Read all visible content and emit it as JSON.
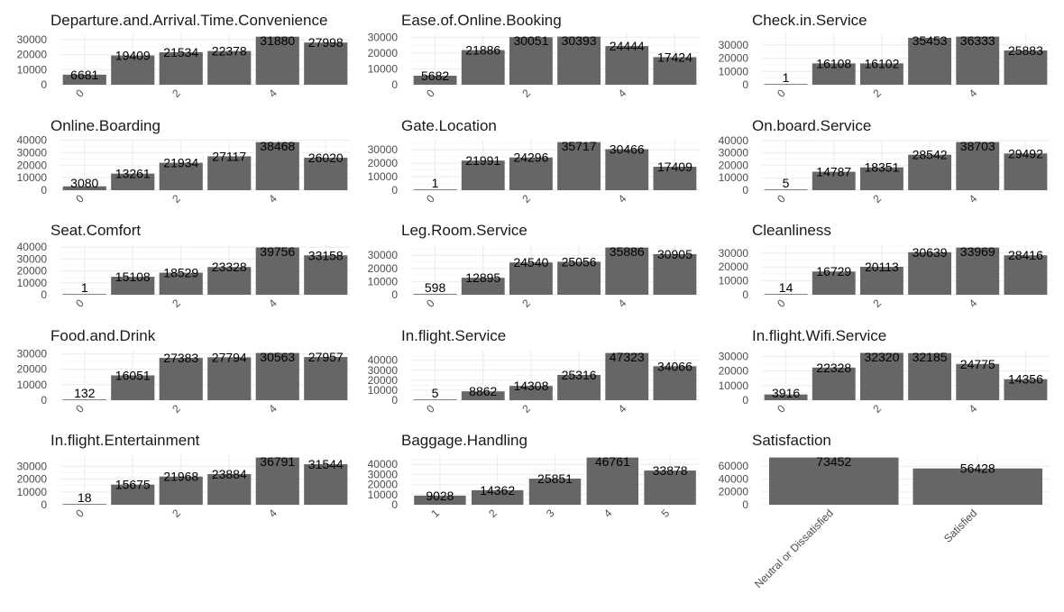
{
  "chart_data": [
    {
      "type": "bar",
      "title": "Departure.and.Arrival.Time.Convenience",
      "categories": [
        "0",
        "1",
        "2",
        "3",
        "4",
        "5"
      ],
      "values": [
        6681,
        19409,
        21534,
        22378,
        31880,
        27998
      ],
      "xtick_labels": [
        "0",
        "2",
        "4"
      ],
      "yticks": [
        0,
        10000,
        20000,
        30000
      ],
      "ylim": [
        0,
        33500
      ]
    },
    {
      "type": "bar",
      "title": "Ease.of.Online.Booking",
      "categories": [
        "0",
        "1",
        "2",
        "3",
        "4",
        "5"
      ],
      "values": [
        5682,
        21886,
        30051,
        30393,
        24444,
        17424
      ],
      "xtick_labels": [
        "0",
        "2",
        "4"
      ],
      "yticks": [
        0,
        10000,
        20000,
        30000
      ],
      "ylim": [
        0,
        31900
      ]
    },
    {
      "type": "bar",
      "title": "Check.in.Service",
      "categories": [
        "0",
        "1",
        "2",
        "3",
        "4",
        "5"
      ],
      "values": [
        1,
        16108,
        16102,
        35453,
        36333,
        25883
      ],
      "xtick_labels": [
        "0",
        "2",
        "4"
      ],
      "yticks": [
        0,
        10000,
        20000,
        30000
      ],
      "ylim": [
        0,
        38100
      ]
    },
    {
      "type": "bar",
      "title": "Online.Boarding",
      "categories": [
        "0",
        "1",
        "2",
        "3",
        "4",
        "5"
      ],
      "values": [
        3080,
        13261,
        21934,
        27117,
        38468,
        26020
      ],
      "xtick_labels": [
        "0",
        "2",
        "4"
      ],
      "yticks": [
        0,
        10000,
        20000,
        30000,
        40000
      ],
      "ylim": [
        0,
        40400
      ]
    },
    {
      "type": "bar",
      "title": "Gate.Location",
      "categories": [
        "0",
        "1",
        "2",
        "3",
        "4",
        "5"
      ],
      "values": [
        1,
        21991,
        24296,
        35717,
        30466,
        17409
      ],
      "xtick_labels": [
        "0",
        "2",
        "4"
      ],
      "yticks": [
        0,
        10000,
        20000,
        30000
      ],
      "ylim": [
        0,
        37500
      ]
    },
    {
      "type": "bar",
      "title": "On.board.Service",
      "categories": [
        "0",
        "1",
        "2",
        "3",
        "4",
        "5"
      ],
      "values": [
        5,
        14787,
        18351,
        28542,
        38703,
        29492
      ],
      "xtick_labels": [
        "0",
        "2",
        "4"
      ],
      "yticks": [
        0,
        10000,
        20000,
        30000,
        40000
      ],
      "ylim": [
        0,
        40600
      ]
    },
    {
      "type": "bar",
      "title": "Seat.Comfort",
      "categories": [
        "0",
        "1",
        "2",
        "3",
        "4",
        "5"
      ],
      "values": [
        1,
        15108,
        18529,
        23328,
        39756,
        33158
      ],
      "xtick_labels": [
        "0",
        "2",
        "4"
      ],
      "yticks": [
        0,
        10000,
        20000,
        30000,
        40000
      ],
      "ylim": [
        0,
        41700
      ]
    },
    {
      "type": "bar",
      "title": "Leg.Room.Service",
      "categories": [
        "0",
        "1",
        "2",
        "3",
        "4",
        "5"
      ],
      "values": [
        598,
        12895,
        24540,
        25056,
        35886,
        30905
      ],
      "xtick_labels": [
        "0",
        "2",
        "4"
      ],
      "yticks": [
        0,
        10000,
        20000,
        30000
      ],
      "ylim": [
        0,
        37700
      ]
    },
    {
      "type": "bar",
      "title": "Cleanliness",
      "categories": [
        "0",
        "1",
        "2",
        "3",
        "4",
        "5"
      ],
      "values": [
        14,
        16729,
        20113,
        30639,
        33969,
        28416
      ],
      "xtick_labels": [
        "0",
        "2",
        "4"
      ],
      "yticks": [
        0,
        10000,
        20000,
        30000
      ],
      "ylim": [
        0,
        35700
      ]
    },
    {
      "type": "bar",
      "title": "Food.and.Drink",
      "categories": [
        "0",
        "1",
        "2",
        "3",
        "4",
        "5"
      ],
      "values": [
        132,
        16051,
        27383,
        27794,
        30563,
        27957
      ],
      "xtick_labels": [
        "0",
        "2",
        "4"
      ],
      "yticks": [
        0,
        10000,
        20000,
        30000
      ],
      "ylim": [
        0,
        32100
      ]
    },
    {
      "type": "bar",
      "title": "In.flight.Service",
      "categories": [
        "0",
        "1",
        "2",
        "3",
        "4",
        "5"
      ],
      "values": [
        5,
        8862,
        14308,
        25316,
        47323,
        34066
      ],
      "xtick_labels": [
        "0",
        "2",
        "4"
      ],
      "yticks": [
        0,
        10000,
        20000,
        30000,
        40000
      ],
      "ylim": [
        0,
        49700
      ]
    },
    {
      "type": "bar",
      "title": "In.flight.Wifi.Service",
      "categories": [
        "0",
        "1",
        "2",
        "3",
        "4",
        "5"
      ],
      "values": [
        3916,
        22328,
        32320,
        32185,
        24775,
        14356
      ],
      "xtick_labels": [
        "0",
        "2",
        "4"
      ],
      "yticks": [
        0,
        10000,
        20000,
        30000
      ],
      "ylim": [
        0,
        33900
      ]
    },
    {
      "type": "bar",
      "title": "In.flight.Entertainment",
      "categories": [
        "0",
        "1",
        "2",
        "3",
        "4",
        "5"
      ],
      "values": [
        18,
        15675,
        21968,
        23884,
        36791,
        31544
      ],
      "xtick_labels": [
        "0",
        "2",
        "4"
      ],
      "yticks": [
        0,
        10000,
        20000,
        30000
      ],
      "ylim": [
        0,
        38600
      ]
    },
    {
      "type": "bar",
      "title": "Baggage.Handling",
      "categories": [
        "1",
        "2",
        "3",
        "4",
        "5"
      ],
      "values": [
        9028,
        14362,
        25851,
        46761,
        33878
      ],
      "xtick_labels": [
        "1",
        "2",
        "3",
        "4",
        "5"
      ],
      "yticks": [
        0,
        10000,
        20000,
        30000,
        40000
      ],
      "ylim": [
        0,
        49100
      ]
    },
    {
      "type": "bar",
      "title": "Satisfaction",
      "categories": [
        "Neutral or Dissatisfied",
        "Satisfied"
      ],
      "values": [
        73452,
        56428
      ],
      "xtick_labels": [
        "Neutral or Dissatisfied",
        "Satisfied"
      ],
      "yticks": [
        0,
        20000,
        40000,
        60000
      ],
      "ylim": [
        0,
        77100
      ]
    }
  ],
  "style": {
    "bar_color": "#666666",
    "grid_color": "#ebebeb",
    "background": "#ffffff",
    "text_color": "#1a1a1a",
    "tick_color": "#4d4d4d"
  }
}
